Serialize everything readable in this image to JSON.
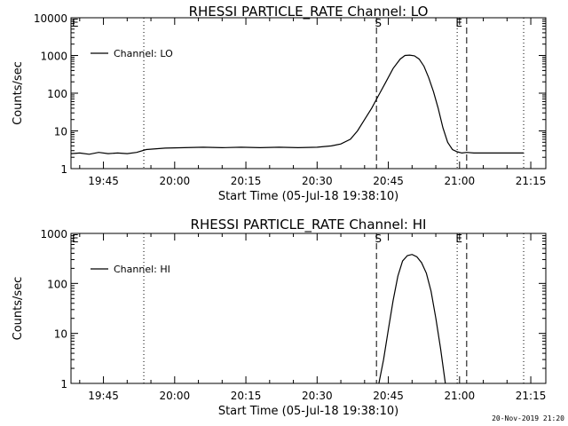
{
  "footer": {
    "timestamp": "20-Nov-2019 21:20"
  },
  "chart_data": [
    {
      "type": "line",
      "title": "RHESSI PARTICLE_RATE Channel: LO",
      "xlabel": "Start Time (05-Jul-18 19:38:10)",
      "ylabel": "Counts/sec",
      "y_scale": "log",
      "ylim": [
        1,
        10000
      ],
      "y_ticks": [
        "1",
        "10",
        "100",
        "1000",
        "10000"
      ],
      "xlim": [
        "19:38:10",
        "21:18:10"
      ],
      "x_ticks": [
        "19:45",
        "20:00",
        "20:15",
        "20:30",
        "20:45",
        "21:00",
        "21:15"
      ],
      "legend": {
        "placement": "top-left",
        "entries": [
          "Channel: LO"
        ]
      },
      "markers": [
        {
          "time": "19:53:30",
          "style": "dotted",
          "label": ""
        },
        {
          "time": "20:42:30",
          "style": "dashed",
          "label": "S"
        },
        {
          "time": "20:59:30",
          "style": "dotted",
          "label": "E"
        },
        {
          "time": "21:01:30",
          "style": "dashed",
          "label": ""
        },
        {
          "time": "21:13:30",
          "style": "dotted",
          "label": ""
        }
      ],
      "corner_label": "E",
      "series": [
        {
          "name": "Channel: LO",
          "x": [
            "19:38:10",
            "19:40:00",
            "19:42:00",
            "19:44:00",
            "19:46:00",
            "19:48:00",
            "19:50:00",
            "19:52:00",
            "19:54:00",
            "19:58:00",
            "20:02:00",
            "20:06:00",
            "20:10:00",
            "20:14:00",
            "20:18:00",
            "20:22:00",
            "20:26:00",
            "20:30:00",
            "20:33:00",
            "20:35:00",
            "20:37:00",
            "20:38:30",
            "20:40:00",
            "20:41:30",
            "20:43:00",
            "20:44:30",
            "20:46:00",
            "20:47:30",
            "20:48:30",
            "20:49:30",
            "20:50:30",
            "20:51:30",
            "20:52:30",
            "20:53:30",
            "20:54:30",
            "20:55:30",
            "20:56:30",
            "20:57:30",
            "20:58:30",
            "20:59:30",
            "21:00:30",
            "21:01:30",
            "21:03:00",
            "21:05:00",
            "21:08:00",
            "21:11:00",
            "21:12:00",
            "21:13:30"
          ],
          "y": [
            2.5,
            2.6,
            2.4,
            2.7,
            2.5,
            2.6,
            2.5,
            2.7,
            3.2,
            3.5,
            3.6,
            3.7,
            3.6,
            3.7,
            3.6,
            3.7,
            3.6,
            3.7,
            4.0,
            4.5,
            6,
            10,
            20,
            40,
            90,
            200,
            450,
            800,
            1000,
            1020,
            980,
            800,
            520,
            260,
            110,
            40,
            12,
            5,
            3.2,
            2.8,
            2.6,
            2.7,
            2.6,
            2.6,
            2.6,
            2.6,
            2.6,
            2.6
          ]
        }
      ]
    },
    {
      "type": "line",
      "title": "RHESSI PARTICLE_RATE Channel: HI",
      "xlabel": "Start Time (05-Jul-18 19:38:10)",
      "ylabel": "Counts/sec",
      "y_scale": "log",
      "ylim": [
        1,
        1000
      ],
      "y_ticks": [
        "1",
        "10",
        "100",
        "1000"
      ],
      "xlim": [
        "19:38:10",
        "21:18:10"
      ],
      "x_ticks": [
        "19:45",
        "20:00",
        "20:15",
        "20:30",
        "20:45",
        "21:00",
        "21:15"
      ],
      "legend": {
        "placement": "top-left",
        "entries": [
          "Channel: HI"
        ]
      },
      "markers": [
        {
          "time": "19:53:30",
          "style": "dotted",
          "label": ""
        },
        {
          "time": "20:42:30",
          "style": "dashed",
          "label": "S"
        },
        {
          "time": "20:59:30",
          "style": "dotted",
          "label": "E"
        },
        {
          "time": "21:01:30",
          "style": "dashed",
          "label": ""
        },
        {
          "time": "21:13:30",
          "style": "dotted",
          "label": ""
        }
      ],
      "corner_label": "E",
      "series": [
        {
          "name": "Channel: HI",
          "x": [
            "20:43:00",
            "20:44:00",
            "20:45:00",
            "20:46:00",
            "20:47:00",
            "20:48:00",
            "20:49:00",
            "20:50:00",
            "20:51:00",
            "20:52:00",
            "20:53:00",
            "20:54:00",
            "20:55:00",
            "20:56:00",
            "20:57:00"
          ],
          "y": [
            1,
            3,
            12,
            45,
            140,
            280,
            360,
            380,
            340,
            260,
            160,
            70,
            20,
            5,
            1
          ]
        }
      ]
    }
  ]
}
